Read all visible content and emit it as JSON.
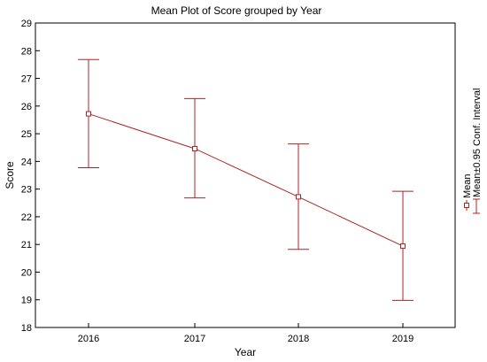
{
  "chart_data": {
    "type": "line",
    "title": "Mean Plot of Score grouped by Year",
    "xlabel": "Year",
    "ylabel": "Score",
    "categories": [
      "2016",
      "2017",
      "2018",
      "2019"
    ],
    "series": [
      {
        "name": "Mean",
        "values": [
          25.72,
          24.46,
          22.72,
          20.94
        ],
        "ci_low": [
          23.77,
          22.68,
          20.82,
          18.98
        ],
        "ci_high": [
          27.68,
          26.27,
          24.63,
          22.92
        ]
      }
    ],
    "ylim": [
      18,
      29
    ],
    "yticks": [
      18,
      19,
      20,
      21,
      22,
      23,
      24,
      25,
      26,
      27,
      28,
      29
    ],
    "legend": {
      "position": "right",
      "mean_label": "Mean",
      "ci_label": "Mean±0.95 Conf. Interval"
    },
    "grid": false,
    "colors": {
      "series": "#b22222",
      "axis": "#000000"
    }
  }
}
